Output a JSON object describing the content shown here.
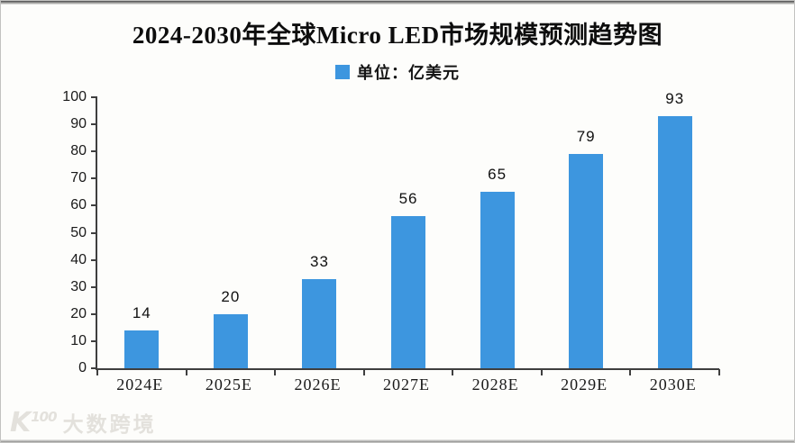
{
  "title": "2024-2030年全球Micro LED市场规模预测趋势图",
  "legend": {
    "label": "单位：亿美元",
    "swatch_color": "#3D96DF"
  },
  "watermark": {
    "logo": "K",
    "logo_sup": "100",
    "text": "大数跨境"
  },
  "chart_data": {
    "type": "bar",
    "title": "2024-2030年全球Micro LED市场规模预测趋势图",
    "categories": [
      "2024E",
      "2025E",
      "2026E",
      "2027E",
      "2028E",
      "2029E",
      "2030E"
    ],
    "values": [
      14,
      20,
      33,
      56,
      65,
      79,
      93
    ],
    "xlabel": "",
    "ylabel": "",
    "ylim": [
      0,
      100
    ],
    "ytick_step": 10,
    "bar_color": "#3D96DF",
    "value_labels": true,
    "grid": false,
    "legend_entries": [
      "单位：亿美元"
    ],
    "legend_position": "top"
  }
}
